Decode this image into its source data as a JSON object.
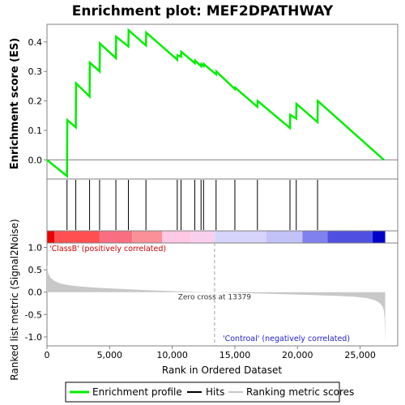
{
  "title": "Enrichment plot: MEF2DPATHWAY",
  "colors": {
    "profile": "#00ee00",
    "hits": "#000000",
    "metric_fill": "#c8c8c8",
    "zero_line": "#808080",
    "frame": "#808080",
    "heatmap_red": "#ff0000",
    "heatmap_pink": "#ffc8e6",
    "heatmap_lavender": "#d2d2ff",
    "heatmap_blue": "#0000dc"
  },
  "chart_data": [
    {
      "type": "line",
      "name": "enrichment-profile",
      "title": "Enrichment plot: MEF2DPATHWAY",
      "ylabel": "Enrichment score (ES)",
      "xlim": [
        0,
        28000
      ],
      "ylim": [
        -0.065,
        0.46
      ],
      "yticks": [
        -0.0,
        0.1,
        0.2,
        0.3,
        0.4
      ],
      "ytick_labels": [
        "0.0",
        "0.1",
        "0.2",
        "0.3",
        "0.4"
      ],
      "grid": false,
      "series": [
        {
          "name": "Enrichment profile",
          "x": [
            0,
            1600,
            1620,
            2300,
            2320,
            3400,
            3420,
            4200,
            4220,
            5500,
            5520,
            6500,
            6520,
            7900,
            7920,
            10400,
            10420,
            10700,
            10720,
            11800,
            11820,
            12300,
            12320,
            12500,
            12520,
            13500,
            13520,
            15000,
            15020,
            16800,
            16820,
            19400,
            19420,
            19900,
            19920,
            21600,
            21620,
            26900
          ],
          "y": [
            0.0,
            -0.055,
            0.135,
            0.11,
            0.26,
            0.215,
            0.33,
            0.3,
            0.395,
            0.345,
            0.418,
            0.385,
            0.44,
            0.388,
            0.432,
            0.34,
            0.355,
            0.35,
            0.367,
            0.328,
            0.337,
            0.318,
            0.325,
            0.318,
            0.325,
            0.29,
            0.3,
            0.24,
            0.245,
            0.18,
            0.2,
            0.108,
            0.153,
            0.14,
            0.19,
            0.128,
            0.2,
            0.0
          ]
        }
      ]
    },
    {
      "type": "hits",
      "name": "hits",
      "xlim": [
        0,
        28000
      ],
      "hit_ranks": [
        1600,
        2300,
        3400,
        4200,
        5500,
        6500,
        7900,
        10400,
        10700,
        11800,
        12300,
        12500,
        13500,
        15000,
        16800,
        19400,
        19900,
        21600
      ]
    },
    {
      "type": "heatmap",
      "name": "rank-colorbar",
      "xlim": [
        0,
        28000
      ],
      "segments": [
        {
          "start": 0,
          "end": 600,
          "color": "#ee0000"
        },
        {
          "start": 600,
          "end": 4200,
          "color": "#fe5050"
        },
        {
          "start": 4200,
          "end": 6800,
          "color": "#fa6e82"
        },
        {
          "start": 6800,
          "end": 9200,
          "color": "#fa9098"
        },
        {
          "start": 9200,
          "end": 11500,
          "color": "#ffc8e4"
        },
        {
          "start": 11500,
          "end": 13400,
          "color": "#f8d0ee"
        },
        {
          "start": 13400,
          "end": 17500,
          "color": "#d6d4fa"
        },
        {
          "start": 17500,
          "end": 20400,
          "color": "#c2c2f8"
        },
        {
          "start": 20400,
          "end": 22400,
          "color": "#8080ee"
        },
        {
          "start": 22400,
          "end": 26000,
          "color": "#5050e0"
        },
        {
          "start": 26000,
          "end": 27000,
          "color": "#0000c8"
        }
      ]
    },
    {
      "type": "area",
      "name": "ranked-metric",
      "xlabel": "Rank in Ordered Dataset",
      "ylabel": "Ranked list metric (Signal2Noise)",
      "xlim": [
        0,
        28000
      ],
      "ylim": [
        -1.2,
        1.1
      ],
      "xticks": [
        0,
        5000,
        10000,
        15000,
        20000,
        25000
      ],
      "xtick_labels": [
        "0",
        "5,000",
        "10,000",
        "15,000",
        "20,000",
        "25,000"
      ],
      "yticks": [
        -1.0,
        -0.5,
        0.0,
        0.5,
        1.0
      ],
      "ytick_labels": [
        "-1.0",
        "-0.5",
        "0.0",
        "0.5",
        "1.0"
      ],
      "x": [
        0,
        100,
        300,
        600,
        1000,
        1500,
        2200,
        3000,
        4000,
        5000,
        6500,
        8000,
        10000,
        12000,
        13379,
        15000,
        17000,
        19000,
        21000,
        23000,
        24500,
        25500,
        26200,
        26600,
        26800,
        26900,
        26950,
        27000
      ],
      "values": [
        0.62,
        0.42,
        0.32,
        0.25,
        0.2,
        0.17,
        0.14,
        0.12,
        0.1,
        0.085,
        0.065,
        0.045,
        0.025,
        0.01,
        0.0,
        -0.015,
        -0.03,
        -0.045,
        -0.06,
        -0.08,
        -0.1,
        -0.13,
        -0.18,
        -0.25,
        -0.32,
        -0.42,
        -0.6,
        -1.12
      ],
      "zero_cross": 13379,
      "annotations": {
        "zero_cross": "Zero cross at 13379",
        "positive": "'ClassB' (positively correlated)",
        "negative": "'Controal' (negatively correlated)"
      }
    }
  ],
  "legend": {
    "items": [
      {
        "label": "Enrichment profile",
        "color": "#00ee00"
      },
      {
        "label": "Hits",
        "color": "#000000"
      },
      {
        "label": "Ranking metric scores",
        "color": "#c8c8c8"
      }
    ],
    "position": "bottom-center"
  }
}
